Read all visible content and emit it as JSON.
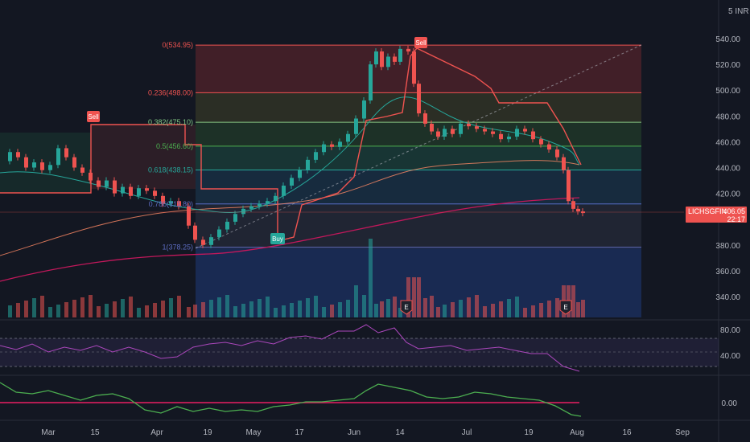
{
  "currency": "INR",
  "scale_label": "5",
  "price_axis": {
    "labels": [
      "540.00",
      "520.00",
      "500.00",
      "480.00",
      "460.00",
      "440.00",
      "420.00",
      "380.00",
      "360.00",
      "340.00"
    ],
    "values": [
      540,
      520,
      500,
      480,
      460,
      440,
      420,
      380,
      360,
      340
    ]
  },
  "time_axis": {
    "labels": [
      "Mar",
      "15",
      "Apr",
      "19",
      "May",
      "17",
      "Jun",
      "14",
      "Jul",
      "19",
      "Aug",
      "16",
      "Sep"
    ]
  },
  "symbol_tag": {
    "name": "LICHSGFIN",
    "price": "406.05",
    "countdown": "22:17"
  },
  "fib_levels": [
    {
      "label": "0(534.95)",
      "value": 534.95,
      "color": "#ef5350"
    },
    {
      "label": "0.236(498.00)",
      "value": 498.0,
      "color": "#ef5350"
    },
    {
      "label": "0.382(475.10)",
      "value": 475.1,
      "color": "#81c784"
    },
    {
      "label": "0.5(456.60)",
      "value": 456.6,
      "color": "#4caf50"
    },
    {
      "label": "0.618(438.15)",
      "value": 438.15,
      "color": "#26a69a"
    },
    {
      "label": "0.786(411.80)",
      "value": 411.8,
      "color": "#5c6bc0"
    },
    {
      "label": "1(378.25)",
      "value": 378.25,
      "color": "#5c6bc0"
    }
  ],
  "signals": [
    {
      "label": "Sell",
      "color": "#ef5350"
    },
    {
      "label": "Buy",
      "color": "#26a69a"
    },
    {
      "label": "Sell",
      "color": "#ef5350"
    }
  ],
  "earnings_marker": "E",
  "rsi_axis": {
    "labels": [
      "80.00",
      "40.00"
    ]
  },
  "osc_axis": {
    "labels": [
      "0.00"
    ]
  },
  "colors": {
    "up": "#26a69a",
    "down": "#ef5350",
    "background": "#131722"
  }
}
